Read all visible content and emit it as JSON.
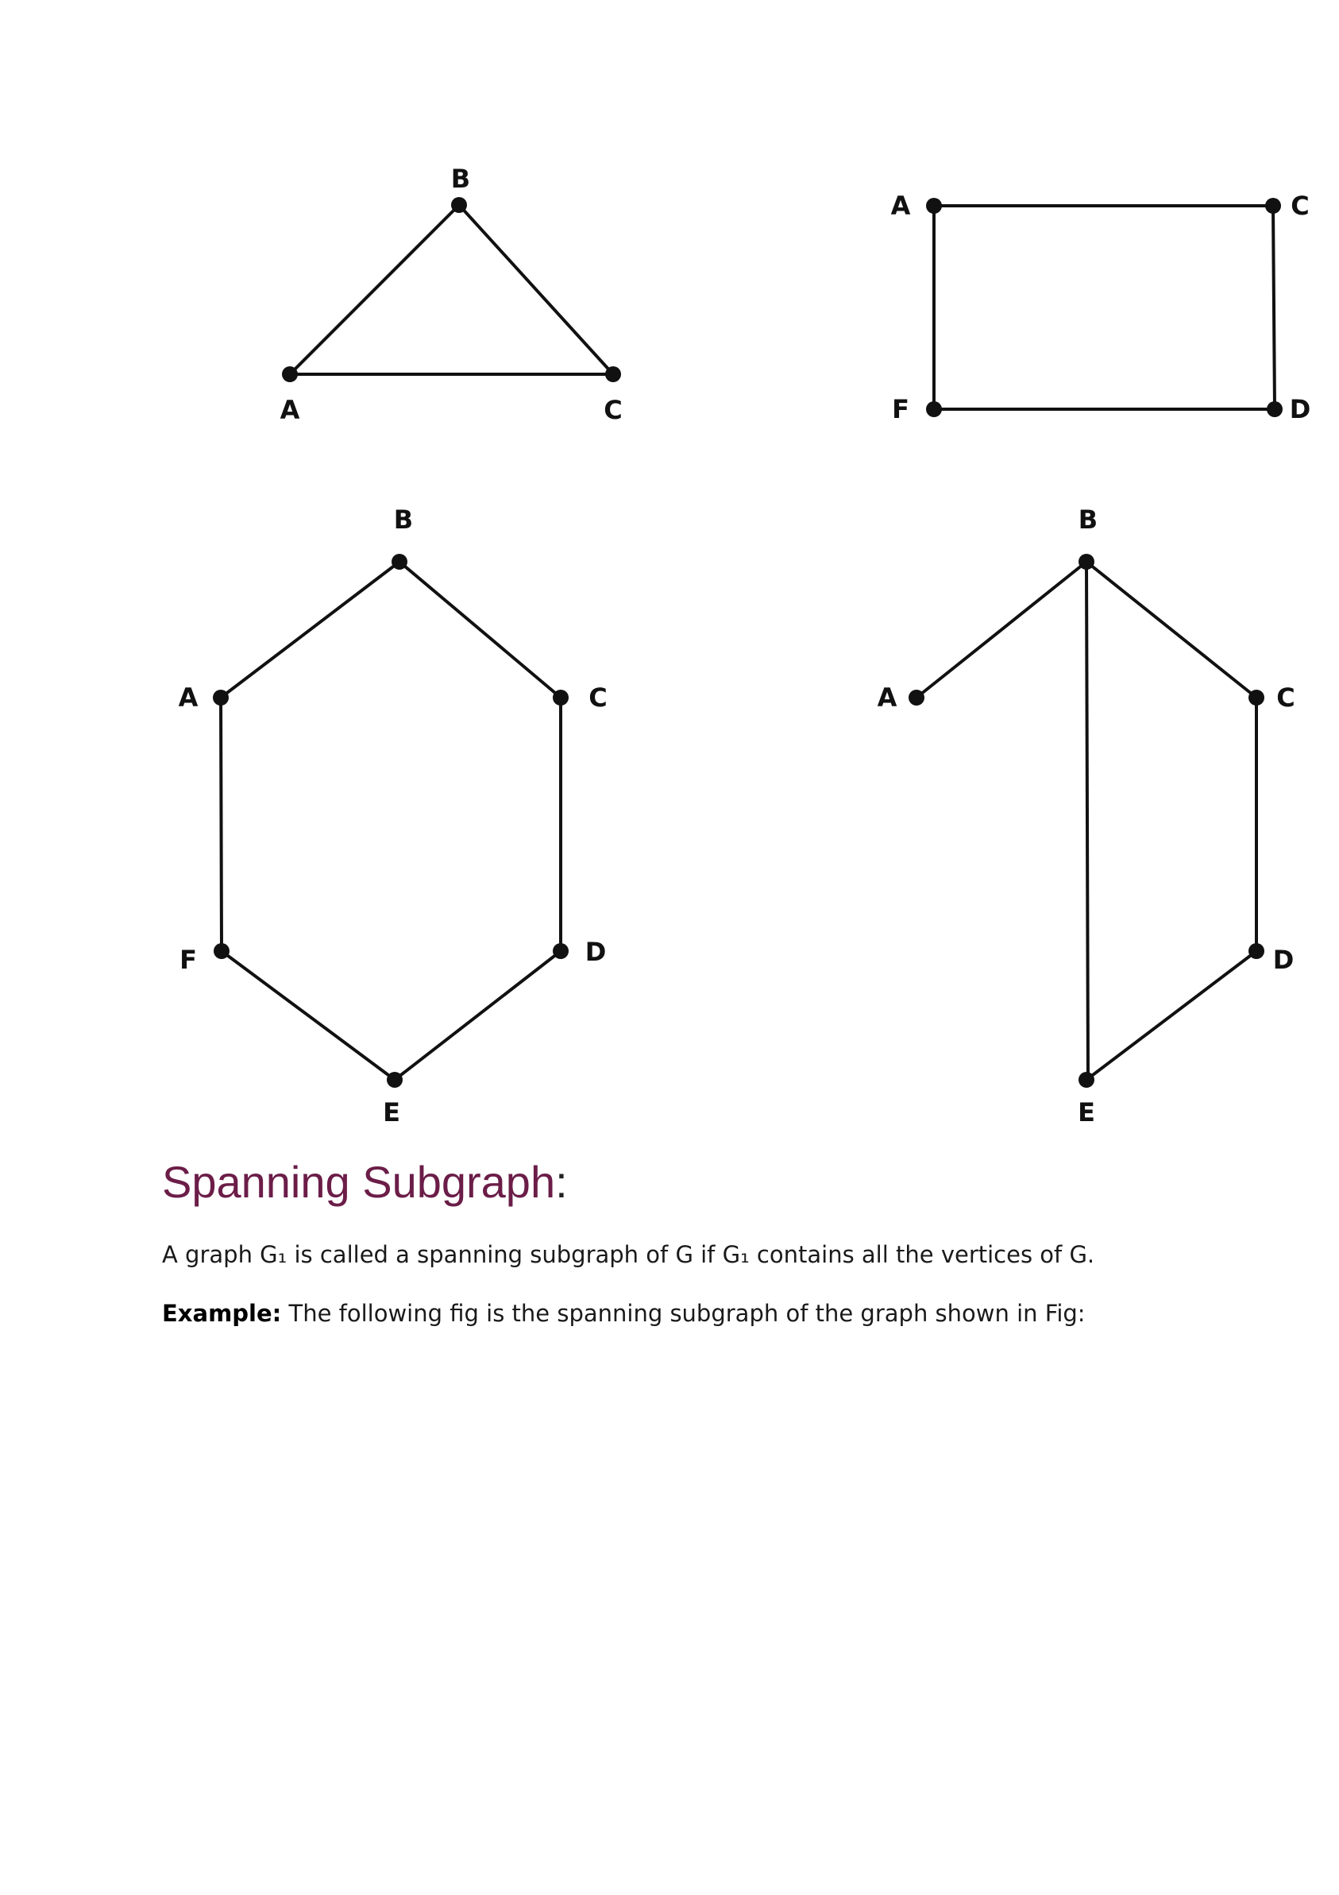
{
  "graphs": [
    {
      "name": "triangle",
      "vertices": [
        "A",
        "B",
        "C"
      ],
      "edges": [
        [
          "A",
          "B"
        ],
        [
          "B",
          "C"
        ],
        [
          "A",
          "C"
        ]
      ]
    },
    {
      "name": "rectangle",
      "vertices": [
        "A",
        "C",
        "D",
        "F"
      ],
      "edges": [
        [
          "A",
          "C"
        ],
        [
          "C",
          "D"
        ],
        [
          "D",
          "F"
        ],
        [
          "F",
          "A"
        ]
      ]
    },
    {
      "name": "hexagon",
      "vertices": [
        "A",
        "B",
        "C",
        "D",
        "E",
        "F"
      ],
      "edges": [
        [
          "A",
          "B"
        ],
        [
          "B",
          "C"
        ],
        [
          "C",
          "D"
        ],
        [
          "D",
          "E"
        ],
        [
          "E",
          "F"
        ],
        [
          "F",
          "A"
        ]
      ]
    },
    {
      "name": "spanning-subgraph",
      "vertices": [
        "A",
        "B",
        "C",
        "D",
        "E"
      ],
      "edges": [
        [
          "A",
          "B"
        ],
        [
          "B",
          "C"
        ],
        [
          "C",
          "D"
        ],
        [
          "D",
          "E"
        ],
        [
          "B",
          "E"
        ]
      ]
    }
  ],
  "section": {
    "heading": "Spanning Subgraph",
    "heading_colon": ":",
    "definition": "A graph G₁ is called a spanning subgraph of G if G₁ contains all the vertices of G.",
    "example_label": "Example:",
    "example_text": " The following fig is the spanning subgraph of the graph shown in Fig:"
  }
}
